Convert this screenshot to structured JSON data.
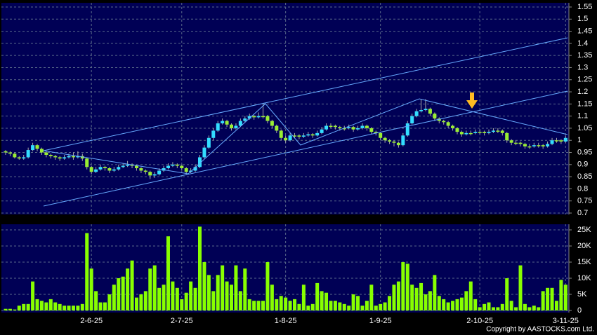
{
  "chart_data": [
    {
      "type": "candlestick",
      "up_color": "#33ddff",
      "down_color": "#99ee33",
      "ylim": [
        0.7,
        1.55
      ],
      "yticks": [
        0.7,
        0.75,
        0.8,
        0.85,
        0.9,
        0.95,
        1,
        1.05,
        1.1,
        1.15,
        1.2,
        1.25,
        1.3,
        1.35,
        1.4,
        1.45,
        1.5,
        1.55
      ],
      "grid": true,
      "series": [
        {
          "ohlc": [
            [
              0.955,
              0.96,
              0.94,
              0.95
            ],
            [
              0.95,
              0.955,
              0.935,
              0.945
            ],
            [
              0.945,
              0.95,
              0.925,
              0.93
            ],
            [
              0.93,
              0.935,
              0.92,
              0.925
            ],
            [
              0.925,
              0.94,
              0.92,
              0.93
            ],
            [
              0.93,
              0.97,
              0.925,
              0.96
            ],
            [
              0.96,
              0.99,
              0.955,
              0.98
            ],
            [
              0.98,
              0.985,
              0.955,
              0.965
            ],
            [
              0.965,
              0.97,
              0.94,
              0.95
            ],
            [
              0.95,
              0.955,
              0.93,
              0.94
            ],
            [
              0.94,
              0.945,
              0.925,
              0.935
            ],
            [
              0.935,
              0.94,
              0.92,
              0.93
            ],
            [
              0.93,
              0.935,
              0.915,
              0.925
            ],
            [
              0.925,
              0.94,
              0.92,
              0.93
            ],
            [
              0.93,
              0.945,
              0.925,
              0.935
            ],
            [
              0.935,
              0.95,
              0.92,
              0.93
            ],
            [
              0.93,
              0.955,
              0.925,
              0.935
            ],
            [
              0.935,
              0.945,
              0.915,
              0.925
            ],
            [
              0.925,
              0.93,
              0.88,
              0.89
            ],
            [
              0.89,
              0.895,
              0.86,
              0.87
            ],
            [
              0.87,
              0.89,
              0.865,
              0.88
            ],
            [
              0.88,
              0.9,
              0.875,
              0.89
            ],
            [
              0.89,
              0.895,
              0.875,
              0.885
            ],
            [
              0.885,
              0.89,
              0.865,
              0.875
            ],
            [
              0.875,
              0.89,
              0.87,
              0.88
            ],
            [
              0.88,
              0.9,
              0.875,
              0.89
            ],
            [
              0.89,
              0.905,
              0.885,
              0.895
            ],
            [
              0.895,
              0.915,
              0.89,
              0.9
            ],
            [
              0.9,
              0.905,
              0.885,
              0.895
            ],
            [
              0.895,
              0.9,
              0.875,
              0.885
            ],
            [
              0.885,
              0.89,
              0.865,
              0.875
            ],
            [
              0.875,
              0.88,
              0.86,
              0.87
            ],
            [
              0.87,
              0.875,
              0.84,
              0.855
            ],
            [
              0.855,
              0.87,
              0.845,
              0.86
            ],
            [
              0.86,
              0.885,
              0.855,
              0.875
            ],
            [
              0.875,
              0.895,
              0.87,
              0.885
            ],
            [
              0.885,
              0.905,
              0.88,
              0.895
            ],
            [
              0.895,
              0.91,
              0.89,
              0.9
            ],
            [
              0.9,
              0.905,
              0.885,
              0.895
            ],
            [
              0.895,
              0.9,
              0.875,
              0.885
            ],
            [
              0.885,
              0.89,
              0.86,
              0.87
            ],
            [
              0.87,
              0.885,
              0.865,
              0.875
            ],
            [
              0.875,
              0.9,
              0.87,
              0.89
            ],
            [
              0.89,
              0.94,
              0.885,
              0.93
            ],
            [
              0.93,
              0.98,
              0.925,
              0.97
            ],
            [
              0.97,
              1.02,
              0.965,
              1.01
            ],
            [
              1.01,
              1.05,
              1.0,
              1.04
            ],
            [
              1.04,
              1.08,
              1.035,
              1.07
            ],
            [
              1.07,
              1.09,
              1.065,
              1.08
            ],
            [
              1.08,
              1.085,
              1.055,
              1.065
            ],
            [
              1.065,
              1.07,
              1.04,
              1.05
            ],
            [
              1.05,
              1.07,
              1.045,
              1.06
            ],
            [
              1.06,
              1.09,
              1.055,
              1.08
            ],
            [
              1.08,
              1.1,
              1.075,
              1.09
            ],
            [
              1.09,
              1.11,
              1.085,
              1.1
            ],
            [
              1.1,
              1.105,
              1.085,
              1.095
            ],
            [
              1.095,
              1.115,
              1.09,
              1.1
            ],
            [
              1.1,
              1.15,
              1.09,
              1.1
            ],
            [
              1.1,
              1.105,
              1.07,
              1.08
            ],
            [
              1.08,
              1.085,
              1.05,
              1.06
            ],
            [
              1.06,
              1.065,
              1.03,
              1.04
            ],
            [
              1.04,
              1.045,
              1.0,
              1.01
            ],
            [
              1.01,
              1.02,
              0.99,
              1.0
            ],
            [
              1.0,
              1.03,
              0.995,
              1.02
            ],
            [
              1.02,
              1.03,
              1.01,
              1.02
            ],
            [
              1.02,
              1.025,
              1.005,
              1.015
            ],
            [
              1.015,
              1.03,
              1.01,
              1.02
            ],
            [
              1.02,
              1.035,
              1.015,
              1.025
            ],
            [
              1.025,
              1.03,
              1.01,
              1.02
            ],
            [
              1.02,
              1.04,
              1.015,
              1.03
            ],
            [
              1.03,
              1.055,
              1.025,
              1.045
            ],
            [
              1.045,
              1.07,
              1.04,
              1.06
            ],
            [
              1.06,
              1.07,
              1.05,
              1.06
            ],
            [
              1.06,
              1.065,
              1.045,
              1.055
            ],
            [
              1.055,
              1.06,
              1.04,
              1.05
            ],
            [
              1.05,
              1.06,
              1.04,
              1.05
            ],
            [
              1.05,
              1.065,
              1.045,
              1.055
            ],
            [
              1.055,
              1.06,
              1.035,
              1.045
            ],
            [
              1.045,
              1.06,
              1.04,
              1.05
            ],
            [
              1.05,
              1.07,
              1.045,
              1.06
            ],
            [
              1.06,
              1.065,
              1.04,
              1.05
            ],
            [
              1.05,
              1.055,
              1.025,
              1.035
            ],
            [
              1.035,
              1.04,
              1.02,
              1.03
            ],
            [
              1.03,
              1.035,
              1.0,
              1.01
            ],
            [
              1.01,
              1.015,
              0.99,
              1.0
            ],
            [
              1.0,
              1.005,
              0.985,
              0.995
            ],
            [
              0.995,
              1.0,
              0.975,
              0.99
            ],
            [
              0.99,
              0.995,
              0.97,
              0.98
            ],
            [
              0.98,
              1.03,
              0.975,
              1.02
            ],
            [
              1.02,
              1.08,
              1.015,
              1.07
            ],
            [
              1.07,
              1.11,
              1.065,
              1.1
            ],
            [
              1.1,
              1.13,
              1.095,
              1.12
            ],
            [
              1.12,
              1.17,
              1.115,
              1.125
            ],
            [
              1.125,
              1.17,
              1.12,
              1.13
            ],
            [
              1.13,
              1.135,
              1.1,
              1.11
            ],
            [
              1.11,
              1.115,
              1.08,
              1.09
            ],
            [
              1.09,
              1.095,
              1.07,
              1.08
            ],
            [
              1.08,
              1.085,
              1.065,
              1.075
            ],
            [
              1.075,
              1.08,
              1.05,
              1.06
            ],
            [
              1.06,
              1.065,
              1.04,
              1.05
            ],
            [
              1.05,
              1.055,
              1.025,
              1.035
            ],
            [
              1.035,
              1.04,
              1.015,
              1.025
            ],
            [
              1.025,
              1.04,
              1.02,
              1.03
            ],
            [
              1.03,
              1.04,
              1.02,
              1.03
            ],
            [
              1.03,
              1.045,
              1.025,
              1.035
            ],
            [
              1.035,
              1.045,
              1.025,
              1.035
            ],
            [
              1.035,
              1.04,
              1.02,
              1.03
            ],
            [
              1.03,
              1.045,
              1.025,
              1.035
            ],
            [
              1.035,
              1.05,
              1.03,
              1.04
            ],
            [
              1.04,
              1.05,
              1.03,
              1.04
            ],
            [
              1.04,
              1.045,
              1.02,
              1.03
            ],
            [
              1.03,
              1.035,
              0.99,
              1.0
            ],
            [
              1.0,
              1.005,
              0.98,
              0.99
            ],
            [
              0.99,
              1.0,
              0.98,
              0.99
            ],
            [
              0.99,
              0.995,
              0.975,
              0.985
            ],
            [
              0.985,
              0.99,
              0.965,
              0.975
            ],
            [
              0.975,
              0.985,
              0.965,
              0.975
            ],
            [
              0.975,
              0.99,
              0.97,
              0.98
            ],
            [
              0.98,
              0.99,
              0.97,
              0.98
            ],
            [
              0.98,
              0.985,
              0.965,
              0.975
            ],
            [
              0.975,
              0.995,
              0.97,
              0.985
            ],
            [
              0.985,
              1.01,
              0.98,
              1.0
            ],
            [
              1.0,
              1.01,
              0.99,
              1.0
            ],
            [
              1.0,
              1.005,
              0.985,
              0.995
            ],
            [
              0.995,
              1.02,
              0.99,
              1.01
            ]
          ]
        }
      ]
    },
    {
      "type": "bar",
      "color": "#88ff00",
      "ylim": [
        0,
        25000
      ],
      "yticks": [
        0,
        {
          "value": 5000,
          "label": "5K"
        },
        {
          "value": 10000,
          "label": "10K"
        },
        {
          "value": 15000,
          "label": "15K"
        },
        {
          "value": 20000,
          "label": "20K"
        },
        {
          "value": 25000,
          "label": "25K"
        }
      ],
      "grid": true,
      "categories": [
        null,
        null,
        null,
        null,
        null,
        null,
        null,
        null,
        null,
        null,
        null,
        null,
        null,
        null,
        null,
        null,
        null,
        null,
        null,
        "2-6-25",
        null,
        null,
        null,
        null,
        null,
        null,
        null,
        null,
        null,
        null,
        null,
        null,
        null,
        null,
        null,
        null,
        null,
        null,
        null,
        "2-7-25",
        null,
        null,
        null,
        null,
        null,
        null,
        null,
        null,
        null,
        null,
        null,
        null,
        null,
        null,
        null,
        null,
        null,
        null,
        null,
        null,
        null,
        null,
        "1-8-25",
        null,
        null,
        null,
        null,
        null,
        null,
        null,
        null,
        null,
        null,
        null,
        null,
        null,
        null,
        null,
        null,
        null,
        null,
        null,
        null,
        "1-9-25",
        null,
        null,
        null,
        null,
        null,
        null,
        null,
        null,
        null,
        null,
        null,
        null,
        null,
        null,
        null,
        null,
        null,
        null,
        null,
        null,
        null,
        "2-10-25",
        null,
        null,
        null,
        null,
        null,
        null,
        null,
        null,
        null,
        null,
        null,
        null,
        null,
        null,
        null,
        null,
        null,
        null,
        "3-11-25"
      ],
      "values": [
        500,
        500,
        300,
        1500,
        2000,
        2000,
        9000,
        3500,
        3000,
        2500,
        3500,
        2500,
        2000,
        1500,
        1500,
        1500,
        1500,
        2000,
        24000,
        13000,
        6000,
        2500,
        2500,
        5000,
        8000,
        10000,
        10500,
        13000,
        15500,
        4000,
        5000,
        6000,
        13000,
        14000,
        7000,
        8000,
        23000,
        9000,
        7000,
        3500,
        5500,
        9000,
        7000,
        26000,
        15000,
        11000,
        6000,
        11000,
        14000,
        9000,
        8000,
        14000,
        6000,
        13000,
        3500,
        3000,
        3000,
        3000,
        15000,
        8000,
        3500,
        4500,
        4000,
        3000,
        3500,
        2000,
        8000,
        1500,
        2000,
        8500,
        6000,
        5500,
        3000,
        3000,
        2500,
        2000,
        1500,
        5000,
        4500,
        1500,
        3000,
        8000,
        1500,
        2000,
        2500,
        4500,
        8000,
        9000,
        15000,
        14500,
        8000,
        7000,
        8500,
        5000,
        6000,
        11000,
        4500,
        3500,
        2500,
        3000,
        3500,
        4000,
        6000,
        9000,
        3500,
        1000,
        2000,
        2500,
        1000,
        1000,
        2000,
        10000,
        3000,
        1000,
        14000,
        2000,
        1000,
        1500,
        1000,
        6000,
        7000,
        7000,
        3000,
        9500,
        8000
      ]
    },
    {
      "type": "note",
      "title": "Copyright by AASTOCKS.com Ltd."
    }
  ]
}
